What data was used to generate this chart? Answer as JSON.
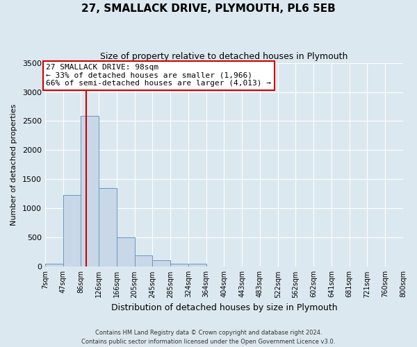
{
  "title": "27, SMALLACK DRIVE, PLYMOUTH, PL6 5EB",
  "subtitle": "Size of property relative to detached houses in Plymouth",
  "xlabel": "Distribution of detached houses by size in Plymouth",
  "ylabel": "Number of detached properties",
  "bin_labels": [
    "7sqm",
    "47sqm",
    "86sqm",
    "126sqm",
    "166sqm",
    "205sqm",
    "245sqm",
    "285sqm",
    "324sqm",
    "364sqm",
    "404sqm",
    "443sqm",
    "483sqm",
    "522sqm",
    "562sqm",
    "602sqm",
    "641sqm",
    "681sqm",
    "721sqm",
    "760sqm",
    "800sqm"
  ],
  "bar_values": [
    50,
    1230,
    2590,
    1350,
    500,
    200,
    110,
    50,
    50,
    0,
    0,
    0,
    0,
    0,
    0,
    0,
    0,
    0,
    0,
    0
  ],
  "bar_color": "#c8d8e8",
  "bar_edge_color": "#6699bb",
  "ylim": [
    0,
    3500
  ],
  "yticks": [
    0,
    500,
    1000,
    1500,
    2000,
    2500,
    3000,
    3500
  ],
  "vline_color": "#cc0000",
  "annotation_title": "27 SMALLACK DRIVE: 98sqm",
  "annotation_line1": "← 33% of detached houses are smaller (1,966)",
  "annotation_line2": "66% of semi-detached houses are larger (4,013) →",
  "annotation_box_color": "#ffffff",
  "annotation_box_edge_color": "#cc0000",
  "footnote1": "Contains HM Land Registry data © Crown copyright and database right 2024.",
  "footnote2": "Contains public sector information licensed under the Open Government Licence v3.0.",
  "background_color": "#dce8f0",
  "grid_color": "#ffffff",
  "n_bins": 20
}
